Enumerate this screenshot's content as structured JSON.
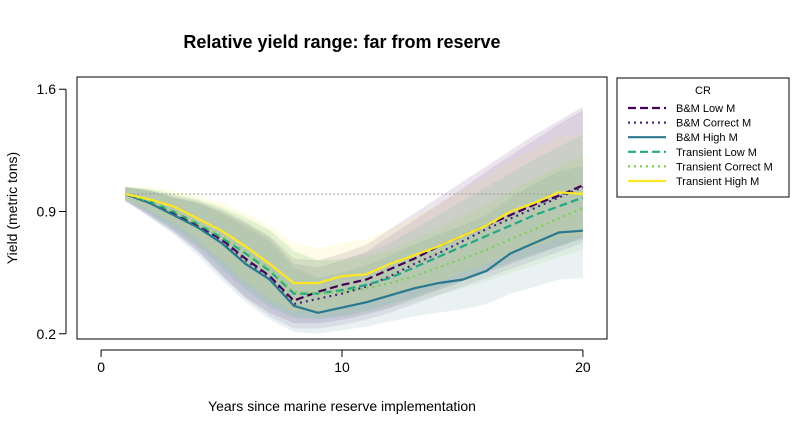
{
  "chart_data": {
    "type": "line",
    "title": "Relative yield range: far from reserve",
    "xlabel": "Years since marine reserve implementation",
    "ylabel": "Yield (metric tons)",
    "xlim": [
      -1,
      21
    ],
    "ylim": [
      0.17,
      1.67
    ],
    "x_ticks": [
      0,
      10,
      20
    ],
    "y_ticks": [
      0.2,
      0.9,
      1.6
    ],
    "x_tick_labels": [
      "0",
      "10",
      "20"
    ],
    "y_tick_labels": [
      "0.2",
      "0.9",
      "1.6"
    ],
    "reference_line": 1.0,
    "grid": false,
    "legend": {
      "title": "CR",
      "position": "right-outside-top"
    },
    "x": [
      1,
      2,
      3,
      4,
      5,
      6,
      7,
      8,
      9,
      10,
      11,
      12,
      13,
      14,
      15,
      16,
      17,
      18,
      19,
      20
    ],
    "series": [
      {
        "name": "B&M Low M",
        "color": "#440154",
        "dash": "dashed",
        "values": [
          1.0,
          0.95,
          0.89,
          0.82,
          0.74,
          0.63,
          0.53,
          0.39,
          0.44,
          0.48,
          0.51,
          0.57,
          0.63,
          0.7,
          0.76,
          0.82,
          0.88,
          0.94,
          0.99,
          1.05
        ],
        "lower": [
          0.96,
          0.88,
          0.79,
          0.68,
          0.54,
          0.41,
          0.32,
          0.26,
          0.26,
          0.28,
          0.31,
          0.35,
          0.4,
          0.45,
          0.5,
          0.55,
          0.6,
          0.65,
          0.7,
          0.75
        ],
        "upper": [
          1.04,
          1.02,
          0.99,
          0.96,
          0.91,
          0.84,
          0.76,
          0.63,
          0.62,
          0.66,
          0.71,
          0.8,
          0.89,
          0.98,
          1.07,
          1.16,
          1.25,
          1.34,
          1.42,
          1.5
        ]
      },
      {
        "name": "B&M Correct M",
        "color": "#482878",
        "dash": "dotted",
        "values": [
          1.0,
          0.95,
          0.88,
          0.81,
          0.73,
          0.62,
          0.52,
          0.37,
          0.4,
          0.43,
          0.47,
          0.53,
          0.6,
          0.66,
          0.73,
          0.8,
          0.86,
          0.92,
          0.98,
          1.04
        ],
        "lower": [
          0.96,
          0.87,
          0.78,
          0.67,
          0.53,
          0.4,
          0.3,
          0.23,
          0.23,
          0.25,
          0.28,
          0.32,
          0.37,
          0.42,
          0.47,
          0.52,
          0.57,
          0.62,
          0.67,
          0.72
        ],
        "upper": [
          1.04,
          1.02,
          0.98,
          0.95,
          0.9,
          0.83,
          0.75,
          0.6,
          0.58,
          0.62,
          0.67,
          0.76,
          0.85,
          0.94,
          1.03,
          1.13,
          1.22,
          1.31,
          1.4,
          1.48
        ]
      },
      {
        "name": "B&M High M",
        "color": "#2A788E",
        "dash": "solid",
        "values": [
          1.0,
          0.95,
          0.88,
          0.81,
          0.72,
          0.6,
          0.51,
          0.36,
          0.32,
          0.35,
          0.38,
          0.42,
          0.46,
          0.49,
          0.51,
          0.56,
          0.66,
          0.72,
          0.78,
          0.79
        ],
        "lower": [
          0.96,
          0.87,
          0.77,
          0.65,
          0.51,
          0.38,
          0.28,
          0.21,
          0.2,
          0.22,
          0.24,
          0.27,
          0.3,
          0.32,
          0.34,
          0.37,
          0.43,
          0.47,
          0.51,
          0.52
        ],
        "upper": [
          1.04,
          1.02,
          0.98,
          0.95,
          0.89,
          0.81,
          0.73,
          0.58,
          0.52,
          0.55,
          0.59,
          0.65,
          0.71,
          0.77,
          0.82,
          0.88,
          0.98,
          1.06,
          1.13,
          1.16
        ]
      },
      {
        "name": "Transient Low M",
        "color": "#22A884",
        "dash": "dashed",
        "values": [
          1.0,
          0.96,
          0.9,
          0.83,
          0.75,
          0.66,
          0.56,
          0.43,
          0.43,
          0.45,
          0.48,
          0.52,
          0.58,
          0.64,
          0.7,
          0.76,
          0.82,
          0.88,
          0.93,
          0.98
        ],
        "lower": [
          0.97,
          0.89,
          0.8,
          0.7,
          0.57,
          0.45,
          0.35,
          0.29,
          0.28,
          0.3,
          0.33,
          0.37,
          0.41,
          0.46,
          0.51,
          0.56,
          0.61,
          0.66,
          0.7,
          0.74
        ],
        "upper": [
          1.04,
          1.03,
          1.0,
          0.97,
          0.92,
          0.86,
          0.79,
          0.67,
          0.62,
          0.63,
          0.66,
          0.72,
          0.8,
          0.88,
          0.96,
          1.04,
          1.12,
          1.2,
          1.27,
          1.34
        ]
      },
      {
        "name": "Transient Correct M",
        "color": "#7AD151",
        "dash": "dotted",
        "values": [
          1.0,
          0.96,
          0.9,
          0.83,
          0.76,
          0.67,
          0.57,
          0.44,
          0.43,
          0.44,
          0.46,
          0.49,
          0.53,
          0.58,
          0.63,
          0.68,
          0.74,
          0.8,
          0.86,
          0.92
        ],
        "lower": [
          0.97,
          0.89,
          0.81,
          0.71,
          0.59,
          0.47,
          0.37,
          0.3,
          0.29,
          0.3,
          0.32,
          0.35,
          0.38,
          0.42,
          0.46,
          0.5,
          0.55,
          0.59,
          0.64,
          0.68
        ],
        "upper": [
          1.04,
          1.03,
          1.0,
          0.97,
          0.93,
          0.87,
          0.8,
          0.68,
          0.62,
          0.62,
          0.64,
          0.68,
          0.74,
          0.8,
          0.87,
          0.94,
          1.02,
          1.09,
          1.16,
          1.22
        ]
      },
      {
        "name": "Transient High M",
        "color": "#FDE725",
        "dash": "solid",
        "values": [
          1.0,
          0.97,
          0.93,
          0.86,
          0.79,
          0.7,
          0.6,
          0.49,
          0.49,
          0.53,
          0.54,
          0.6,
          0.65,
          0.7,
          0.76,
          0.82,
          0.9,
          0.95,
          1.01,
          1.0
        ],
        "lower": [
          0.97,
          0.91,
          0.84,
          0.74,
          0.62,
          0.5,
          0.4,
          0.33,
          0.33,
          0.36,
          0.38,
          0.42,
          0.46,
          0.5,
          0.55,
          0.6,
          0.66,
          0.7,
          0.75,
          0.76
        ],
        "upper": [
          1.04,
          1.04,
          1.02,
          0.99,
          0.95,
          0.89,
          0.82,
          0.72,
          0.69,
          0.72,
          0.74,
          0.8,
          0.87,
          0.94,
          1.02,
          1.1,
          1.19,
          1.26,
          1.33,
          1.34
        ]
      }
    ]
  }
}
